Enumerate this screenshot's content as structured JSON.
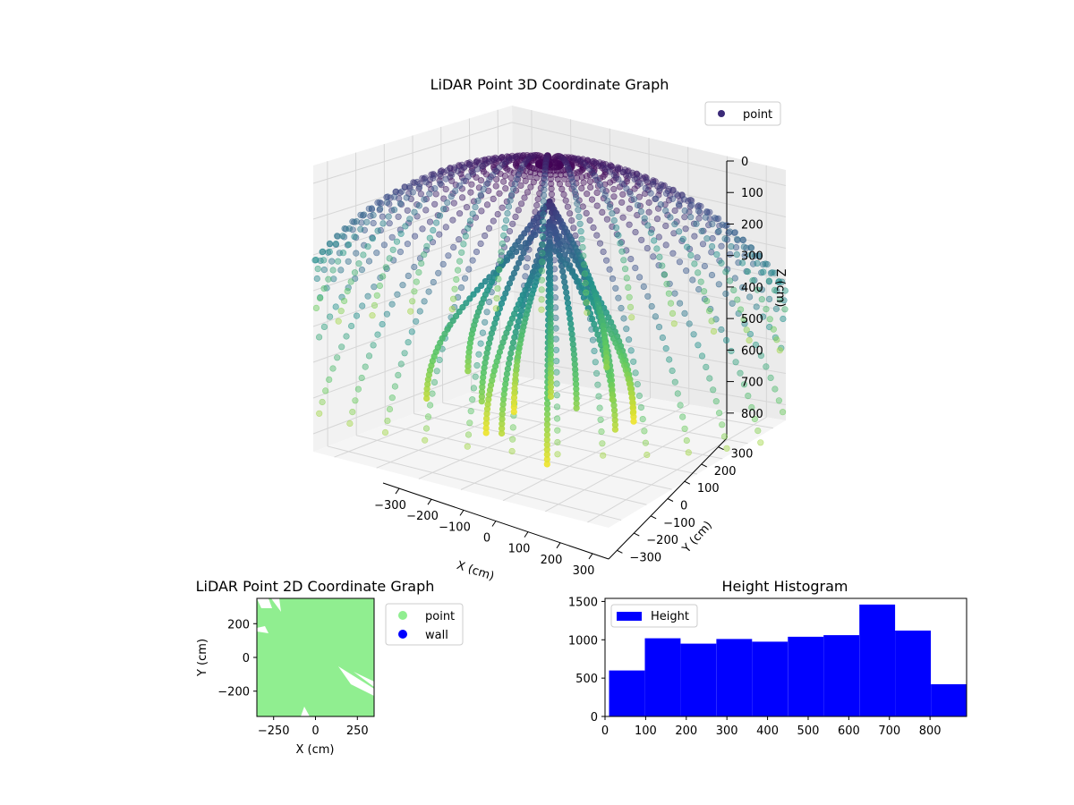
{
  "chart_data": [
    {
      "type": "scatter",
      "subtype": "3d",
      "title": "LiDAR Point 3D Coordinate Graph",
      "xlabel": "X (cm)",
      "ylabel": "Y (cm)",
      "zlabel": "Z (cm)",
      "legend": {
        "placement": "top-right",
        "entries": [
          {
            "name": "point",
            "color": "#3b2a78"
          }
        ]
      },
      "xticks": [
        "−300",
        "−200",
        "−100",
        "0",
        "100",
        "200",
        "300"
      ],
      "yticks": [
        "−300",
        "−200",
        "−100",
        "0",
        "100",
        "200",
        "300"
      ],
      "zticks": [
        "0",
        "100",
        "200",
        "300",
        "400",
        "500",
        "600",
        "700",
        "800"
      ],
      "xlim": [
        -350,
        350
      ],
      "ylim": [
        -350,
        350
      ],
      "zlim": [
        0,
        880
      ],
      "zaxis_inverted": true,
      "colormap": "viridis",
      "series": [
        {
          "name": "point"
        }
      ]
    },
    {
      "type": "scatter",
      "title": "LiDAR Point 2D Coordinate Graph",
      "xlabel": "X (cm)",
      "ylabel": "Y (cm)",
      "xticks": [
        "−250",
        "0",
        "250"
      ],
      "yticks": [
        "200",
        "0",
        "−200"
      ],
      "xlim": [
        -350,
        350
      ],
      "ylim": [
        -350,
        350
      ],
      "legend": {
        "placement": "outside-right",
        "entries": [
          {
            "name": "point",
            "color": "#90ee90"
          },
          {
            "name": "wall",
            "color": "#0000ff"
          }
        ]
      },
      "series": [
        {
          "name": "point",
          "color": "#90ee90"
        },
        {
          "name": "wall",
          "color": "#0000ff"
        }
      ]
    },
    {
      "type": "bar",
      "subtype": "histogram",
      "title": "Height Histogram",
      "xlabel": "",
      "ylabel": "",
      "xticks": [
        "0",
        "100",
        "200",
        "300",
        "400",
        "500",
        "600",
        "700",
        "800"
      ],
      "yticks": [
        "0",
        "500",
        "1000",
        "1500"
      ],
      "xlim": [
        0,
        890
      ],
      "ylim": [
        0,
        1540
      ],
      "legend": {
        "placement": "top-left",
        "entries": [
          {
            "name": "Height",
            "color": "#0000ff"
          }
        ]
      },
      "bin_edges": [
        10,
        98,
        186,
        274,
        362,
        450,
        538,
        626,
        714,
        802,
        890
      ],
      "series": [
        {
          "name": "Height",
          "color": "#0000ff",
          "values": [
            600,
            1020,
            950,
            1010,
            975,
            1040,
            1060,
            1460,
            1120,
            420
          ]
        }
      ]
    }
  ]
}
